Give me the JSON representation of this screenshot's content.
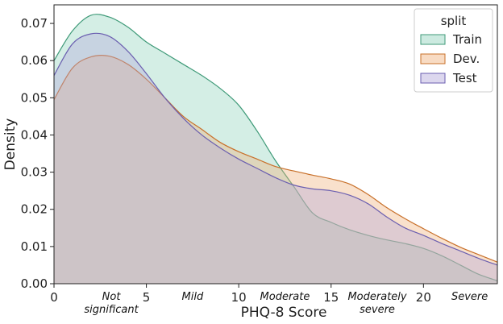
{
  "chart_data": {
    "type": "area",
    "title": "",
    "xlabel": "PHQ-8 Score",
    "ylabel": "Density",
    "xlim": [
      0,
      24
    ],
    "ylim": [
      0,
      0.075
    ],
    "x_ticks": [
      0,
      5,
      10,
      15,
      20
    ],
    "y_ticks": [
      "0.00",
      "0.01",
      "0.02",
      "0.03",
      "0.04",
      "0.05",
      "0.06",
      "0.07"
    ],
    "category_labels": [
      {
        "x": 3.1,
        "lines": [
          "Not",
          "significant"
        ]
      },
      {
        "x": 7.5,
        "lines": [
          "Mild"
        ]
      },
      {
        "x": 12.5,
        "lines": [
          "Moderate"
        ]
      },
      {
        "x": 17.5,
        "lines": [
          "Moderately",
          "severe"
        ]
      },
      {
        "x": 22.5,
        "lines": [
          "Severe"
        ]
      }
    ],
    "legend": {
      "title": "split",
      "position": "top-right"
    },
    "series": [
      {
        "name": "Train",
        "fill": "#8fd1ba",
        "stroke": "#3f9a78",
        "x": [
          0,
          1,
          2,
          3,
          4,
          5,
          6,
          7,
          8,
          9,
          10,
          11,
          12,
          13,
          14,
          15,
          16,
          17,
          18,
          19,
          20,
          21,
          22,
          23,
          24
        ],
        "y": [
          0.06,
          0.068,
          0.0722,
          0.0717,
          0.069,
          0.065,
          0.062,
          0.059,
          0.056,
          0.0525,
          0.048,
          0.041,
          0.033,
          0.026,
          0.019,
          0.0165,
          0.0145,
          0.013,
          0.0118,
          0.0108,
          0.0095,
          0.0075,
          0.005,
          0.0025,
          0.0008
        ]
      },
      {
        "name": "Dev.",
        "fill": "#f0b07a",
        "stroke": "#c8702a",
        "x": [
          0,
          1,
          2,
          3,
          4,
          5,
          6,
          7,
          8,
          9,
          10,
          11,
          12,
          13,
          14,
          15,
          16,
          17,
          18,
          19,
          20,
          21,
          22,
          23,
          24
        ],
        "y": [
          0.0495,
          0.058,
          0.061,
          0.0612,
          0.059,
          0.055,
          0.05,
          0.045,
          0.0415,
          0.038,
          0.0355,
          0.0335,
          0.0315,
          0.0303,
          0.0292,
          0.0282,
          0.0268,
          0.024,
          0.0205,
          0.0175,
          0.0148,
          0.0122,
          0.0098,
          0.0078,
          0.0058
        ]
      },
      {
        "name": "Test",
        "fill": "#b2a7d9",
        "stroke": "#6b5fb0",
        "x": [
          0,
          1,
          2,
          3,
          4,
          5,
          6,
          7,
          8,
          9,
          10,
          11,
          12,
          13,
          14,
          15,
          16,
          17,
          18,
          19,
          20,
          21,
          22,
          23,
          24
        ],
        "y": [
          0.056,
          0.0645,
          0.0672,
          0.0665,
          0.0625,
          0.0565,
          0.05,
          0.0445,
          0.04,
          0.0365,
          0.0335,
          0.031,
          0.0285,
          0.0265,
          0.0255,
          0.025,
          0.0238,
          0.0215,
          0.018,
          0.015,
          0.013,
          0.0108,
          0.0088,
          0.0068,
          0.005
        ]
      }
    ]
  }
}
